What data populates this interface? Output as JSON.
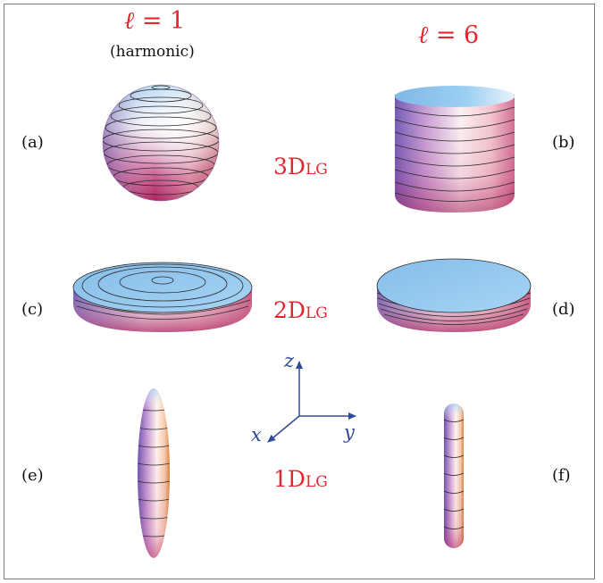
{
  "columns": {
    "left": {
      "ell_symbol": "ℓ",
      "value_text": " = 1",
      "note": "(harmonic)"
    },
    "right": {
      "ell_symbol": "ℓ",
      "value_text": " = 6"
    }
  },
  "panels": {
    "a": "(a)",
    "b": "(b)",
    "c": "(c)",
    "d": "(d)",
    "e": "(e)",
    "f": "(f)"
  },
  "regimes": {
    "three_d": {
      "main": "3D",
      "sub": "LG"
    },
    "two_d": {
      "main": "2D",
      "sub": "LG"
    },
    "one_d": {
      "main": "1D",
      "sub": "LG"
    }
  },
  "axes": {
    "z": "z",
    "x": "x",
    "y": "y"
  },
  "colors": {
    "label_red": "#e3262f",
    "axis_blue": "#2e4a9a",
    "surface_top": "#8cc4ee",
    "surface_mid": "#f5e8f0",
    "surface_bottom": "#c02a6e",
    "surface_side_dark": "#7b5fb5"
  }
}
